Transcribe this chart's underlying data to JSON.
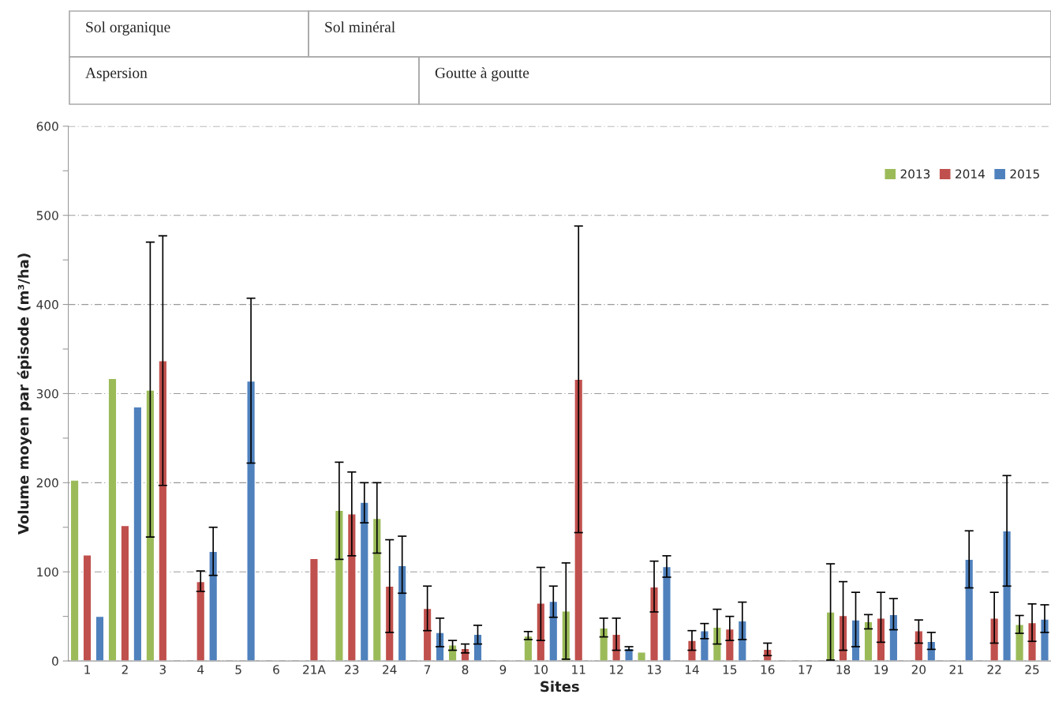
{
  "chart_data": {
    "type": "bar",
    "xlabel": "Sites",
    "ylabel": "Volume moyen par épisode (m³/ha)",
    "annotations": [
      "Sol organique",
      "Sol minéral",
      "Aspersion",
      "Goutte à goutte"
    ],
    "categories": [
      "1",
      "2",
      "3",
      "4",
      "5",
      "6",
      "21A",
      "23",
      "24",
      "7",
      "8",
      "9",
      "10",
      "11",
      "12",
      "13",
      "14",
      "15",
      "16",
      "17",
      "18",
      "19",
      "20",
      "21",
      "22",
      "25"
    ],
    "series": [
      {
        "name": "2013",
        "color": "#9bbb59",
        "values": [
          203,
          317,
          304,
          null,
          null,
          null,
          null,
          169,
          160,
          null,
          18,
          null,
          28,
          56,
          37,
          10,
          null,
          38,
          null,
          null,
          55,
          44,
          null,
          null,
          null,
          41
        ],
        "errors": [
          null,
          null,
          [
            139,
            470
          ],
          null,
          null,
          null,
          null,
          [
            114,
            223
          ],
          [
            121,
            200
          ],
          null,
          [
            12,
            23
          ],
          null,
          [
            24,
            33
          ],
          [
            2,
            110
          ],
          [
            27,
            48
          ],
          null,
          null,
          [
            19,
            58
          ],
          null,
          null,
          [
            1,
            109
          ],
          [
            36,
            52
          ],
          null,
          null,
          null,
          [
            31,
            51
          ]
        ]
      },
      {
        "name": "2014",
        "color": "#c0504d",
        "values": [
          119,
          152,
          337,
          89,
          null,
          null,
          115,
          165,
          84,
          59,
          14,
          null,
          65,
          316,
          30,
          83,
          23,
          36,
          13,
          null,
          51,
          48,
          34,
          null,
          48,
          43
        ],
        "errors": [
          null,
          null,
          [
            197,
            477
          ],
          [
            78,
            101
          ],
          null,
          null,
          null,
          [
            118,
            212
          ],
          [
            32,
            136
          ],
          [
            34,
            84
          ],
          [
            9,
            19
          ],
          null,
          [
            23,
            105
          ],
          [
            144,
            488
          ],
          [
            12,
            48
          ],
          [
            55,
            112
          ],
          [
            12,
            34
          ],
          [
            23,
            50
          ],
          [
            6,
            20
          ],
          null,
          [
            12,
            89
          ],
          [
            21,
            77
          ],
          [
            20,
            46
          ],
          null,
          [
            20,
            77
          ],
          [
            22,
            64
          ]
        ]
      },
      {
        "name": "2015",
        "color": "#4f81bd",
        "values": [
          50,
          285,
          null,
          123,
          314,
          null,
          null,
          178,
          107,
          32,
          30,
          null,
          67,
          null,
          14,
          106,
          34,
          45,
          null,
          null,
          46,
          52,
          22,
          114,
          146,
          47
        ],
        "errors": [
          null,
          null,
          null,
          [
            96,
            150
          ],
          [
            222,
            407
          ],
          null,
          null,
          [
            155,
            200
          ],
          [
            76,
            140
          ],
          [
            16,
            48
          ],
          [
            19,
            40
          ],
          null,
          [
            49,
            84
          ],
          null,
          [
            12,
            16
          ],
          [
            94,
            118
          ],
          [
            25,
            42
          ],
          [
            24,
            66
          ],
          null,
          null,
          [
            16,
            77
          ],
          [
            35,
            70
          ],
          [
            13,
            32
          ],
          [
            82,
            146
          ],
          [
            84,
            208
          ],
          [
            32,
            63
          ]
        ]
      }
    ],
    "ylim": [
      0,
      600
    ],
    "yticks": [
      0,
      {
        "value": 50,
        "label": null
      },
      100,
      {
        "value": 150,
        "label": null
      },
      200,
      {
        "value": 250,
        "label": null
      },
      300,
      {
        "value": 350,
        "label": null
      },
      400,
      {
        "value": 450,
        "label": null
      },
      500,
      {
        "value": 550,
        "label": null
      },
      600
    ],
    "grid": "y",
    "legend": "top right"
  }
}
